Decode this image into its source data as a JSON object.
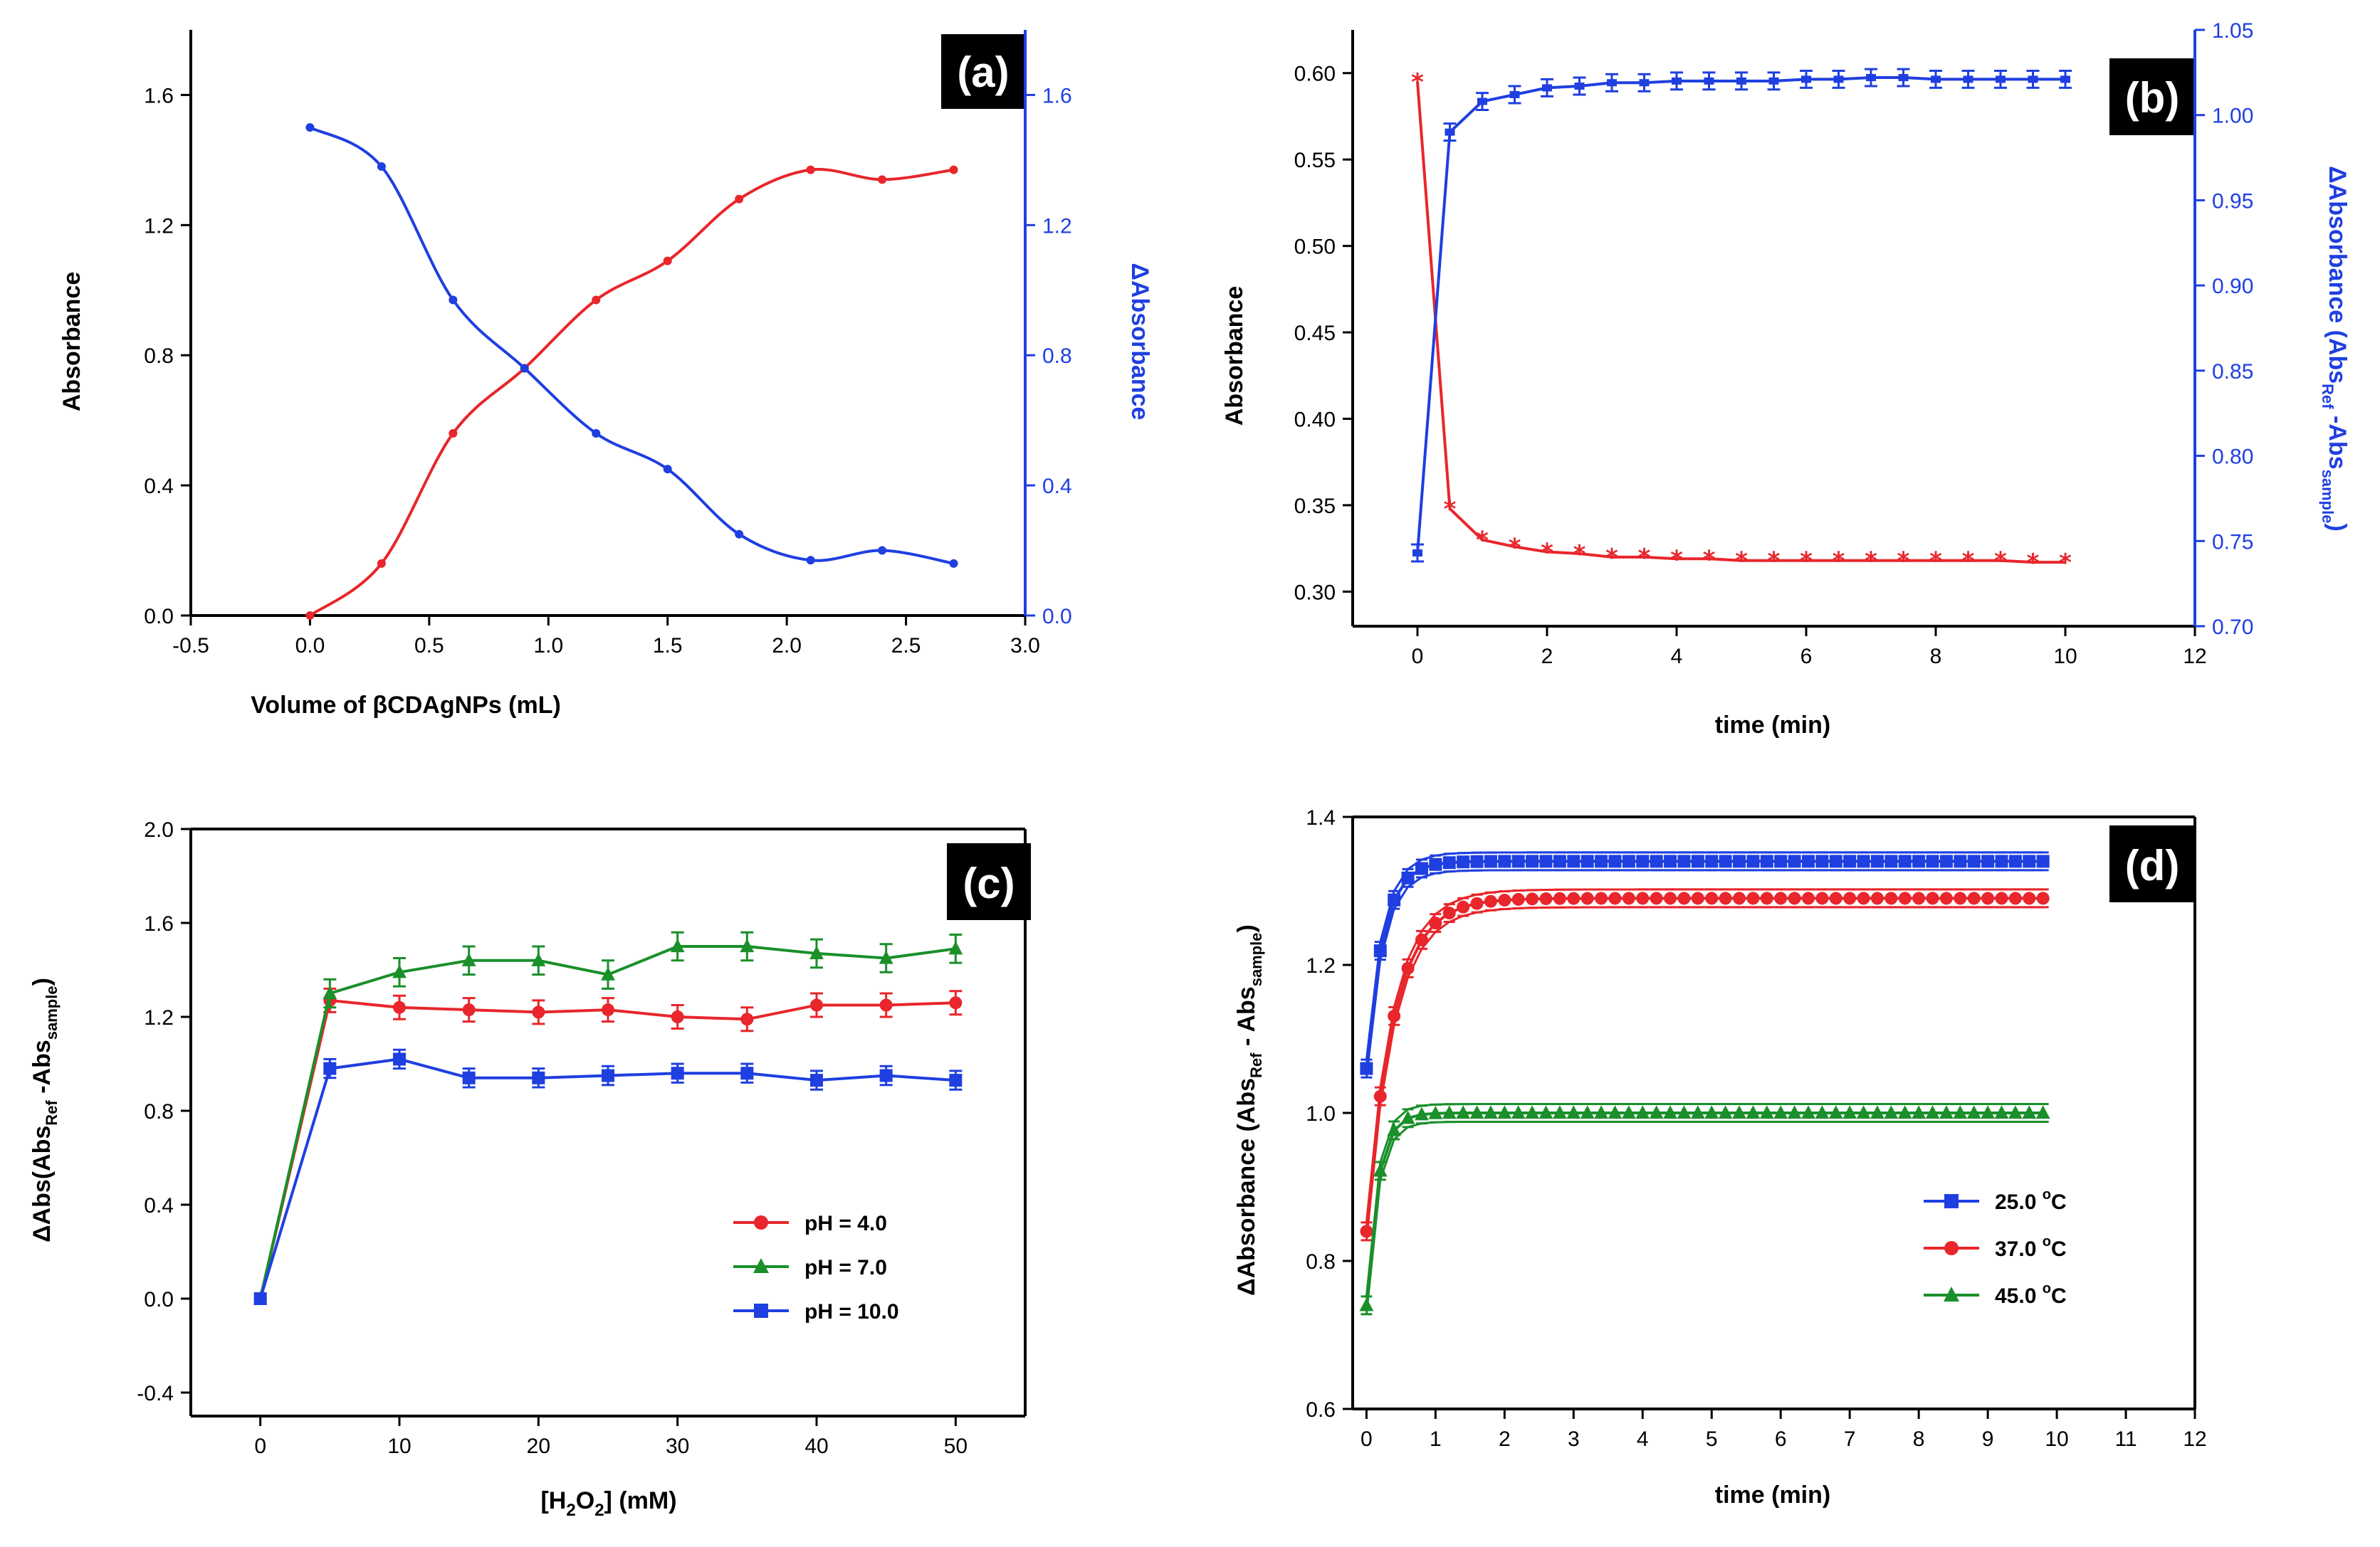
{
  "colors": {
    "red": "#e8262b",
    "green": "#1a8f2a",
    "blue": "#1f3fe0",
    "black": "#000000"
  },
  "chart_data": [
    {
      "panel": "(a)",
      "type": "line",
      "xlabel": "Volume of βCDAgNPs (mL)",
      "ylabel": "Absorbance",
      "y2label": "ΔAbsorbance",
      "xlim": [
        -0.5,
        3.0
      ],
      "ylim": [
        0,
        1.8
      ],
      "y2lim": [
        0,
        1.8
      ],
      "xticks": [
        "-0.5",
        "0.0",
        "0.5",
        "1.0",
        "1.5",
        "2.0",
        "2.5",
        "3.0"
      ],
      "yticks": [
        "0.0",
        "0.4",
        "0.8",
        "1.2",
        "1.6"
      ],
      "y2ticks": [
        "0.0",
        "0.4",
        "0.8",
        "1.2",
        "1.6"
      ],
      "series": [
        {
          "name": "Absorbance",
          "axis": "left",
          "color": "red",
          "marker": "dot",
          "x": [
            0,
            0.3,
            0.6,
            0.9,
            1.2,
            1.5,
            1.8,
            2.1,
            2.4,
            2.7
          ],
          "y": [
            0.0,
            0.16,
            0.56,
            0.76,
            0.97,
            1.09,
            1.28,
            1.37,
            1.34,
            1.37
          ]
        },
        {
          "name": "ΔAbsorbance",
          "axis": "right",
          "color": "blue",
          "marker": "dot",
          "x": [
            0,
            0.3,
            0.6,
            0.9,
            1.2,
            1.5,
            1.8,
            2.1,
            2.4,
            2.7
          ],
          "y": [
            1.5,
            1.38,
            0.97,
            0.76,
            0.56,
            0.45,
            0.25,
            0.17,
            0.2,
            0.16
          ]
        }
      ]
    },
    {
      "panel": "(b)",
      "type": "line",
      "xlabel": "time (min)",
      "ylabel": "Absorbance",
      "y2label": "ΔAbsorbance (Abs",
      "y2label_sub1": "Ref",
      "y2label_mid": " -Abs",
      "y2label_sub2": "sample",
      "y2label_end": ")",
      "xlim": [
        -1,
        12
      ],
      "ylim": [
        0.28,
        0.625
      ],
      "y2lim": [
        0.7,
        1.05
      ],
      "xticks": [
        "0",
        "2",
        "4",
        "6",
        "8",
        "10",
        "12"
      ],
      "yticks": [
        "0.30",
        "0.35",
        "0.40",
        "0.45",
        "0.50",
        "0.55",
        "0.60"
      ],
      "y2ticks": [
        "0.70",
        "0.75",
        "0.80",
        "0.85",
        "0.90",
        "0.95",
        "1.00",
        "1.05"
      ],
      "series": [
        {
          "name": "Absorbance",
          "axis": "left",
          "color": "red",
          "marker": "star",
          "x": [
            0,
            0.5,
            1,
            1.5,
            2,
            2.5,
            3,
            3.5,
            4,
            4.5,
            5,
            5.5,
            6,
            6.5,
            7,
            7.5,
            8,
            8.5,
            9,
            9.5,
            10
          ],
          "y": [
            0.595,
            0.348,
            0.33,
            0.326,
            0.323,
            0.322,
            0.32,
            0.32,
            0.319,
            0.319,
            0.318,
            0.318,
            0.318,
            0.318,
            0.318,
            0.318,
            0.318,
            0.318,
            0.318,
            0.317,
            0.317
          ]
        },
        {
          "name": "ΔAbsorbance",
          "axis": "right",
          "color": "blue",
          "marker": "dash",
          "x": [
            0,
            0.5,
            1,
            1.5,
            2,
            2.5,
            3,
            3.5,
            4,
            4.5,
            5,
            5.5,
            6,
            6.5,
            7,
            7.5,
            8,
            8.5,
            9,
            9.5,
            10
          ],
          "y": [
            0.743,
            0.99,
            1.008,
            1.012,
            1.016,
            1.017,
            1.019,
            1.019,
            1.02,
            1.02,
            1.02,
            1.02,
            1.021,
            1.021,
            1.022,
            1.022,
            1.021,
            1.021,
            1.021,
            1.021,
            1.021
          ],
          "err": 0.005
        }
      ]
    },
    {
      "panel": "(c)",
      "type": "line",
      "xlabel": "[H",
      "xlabel_sub": "2",
      "xlabel_mid": "O",
      "xlabel_sub2": "2",
      "xlabel_end": "] (mM)",
      "ylabel": "ΔAbs(Abs",
      "ylabel_sub1": "Ref",
      "ylabel_mid": " -Abs",
      "ylabel_sub2": "sample",
      "ylabel_end": ")",
      "xlim": [
        -5,
        55
      ],
      "ylim": [
        -0.5,
        2.0
      ],
      "xticks": [
        "0",
        "10",
        "20",
        "30",
        "40",
        "50"
      ],
      "yticks": [
        "-0.4",
        "0.0",
        "0.4",
        "0.8",
        "1.2",
        "1.6",
        "2.0"
      ],
      "legend": [
        "pH = 4.0",
        "pH = 7.0",
        "pH = 10.0"
      ],
      "series": [
        {
          "name": "pH = 4.0",
          "color": "red",
          "marker": "circle",
          "x": [
            0,
            5,
            10,
            15,
            20,
            25,
            30,
            35,
            40,
            45,
            50
          ],
          "y": [
            0.0,
            1.27,
            1.24,
            1.23,
            1.22,
            1.23,
            1.2,
            1.19,
            1.25,
            1.25,
            1.26
          ],
          "err": 0.05
        },
        {
          "name": "pH = 7.0",
          "color": "green",
          "marker": "triangle",
          "x": [
            0,
            5,
            10,
            15,
            20,
            25,
            30,
            35,
            40,
            45,
            50
          ],
          "y": [
            0.0,
            1.3,
            1.39,
            1.44,
            1.44,
            1.38,
            1.5,
            1.5,
            1.47,
            1.45,
            1.49
          ],
          "err": 0.06
        },
        {
          "name": "pH = 10.0",
          "color": "blue",
          "marker": "square",
          "x": [
            0,
            5,
            10,
            15,
            20,
            25,
            30,
            35,
            40,
            45,
            50
          ],
          "y": [
            0.0,
            0.98,
            1.02,
            0.94,
            0.94,
            0.95,
            0.96,
            0.96,
            0.93,
            0.95,
            0.93
          ],
          "err": 0.04
        }
      ]
    },
    {
      "panel": "(d)",
      "type": "line",
      "xlabel": "time (min)",
      "ylabel": "ΔAbsorbance (Abs",
      "ylabel_sub1": "Ref",
      "ylabel_mid": " - Abs",
      "ylabel_sub2": "sample",
      "ylabel_end": ")",
      "xlim": [
        -0.2,
        12
      ],
      "ylim": [
        0.6,
        1.4
      ],
      "xticks": [
        "0",
        "1",
        "2",
        "3",
        "4",
        "5",
        "6",
        "7",
        "8",
        "9",
        "10",
        "11",
        "12"
      ],
      "yticks": [
        "0.6",
        "0.8",
        "1.0",
        "1.2",
        "1.4"
      ],
      "legend": [
        "25.0 °C",
        "37.0 °C",
        "45.0 °C"
      ],
      "legend_prefix": [
        "25.0 ",
        "37.0 ",
        "45.0 "
      ],
      "legend_sup": "o",
      "legend_suffix": "C",
      "series": [
        {
          "name": "25.0 °C",
          "color": "blue",
          "marker": "square",
          "plateau": 1.34,
          "start": 1.06,
          "rate": 4.2
        },
        {
          "name": "37.0 °C",
          "color": "red",
          "marker": "circle",
          "plateau": 1.29,
          "start": 0.84,
          "rate": 2.6
        },
        {
          "name": "45.0 °C",
          "color": "green",
          "marker": "triangle",
          "plateau": 1.0,
          "start": 0.74,
          "rate": 6.0
        }
      ]
    }
  ]
}
